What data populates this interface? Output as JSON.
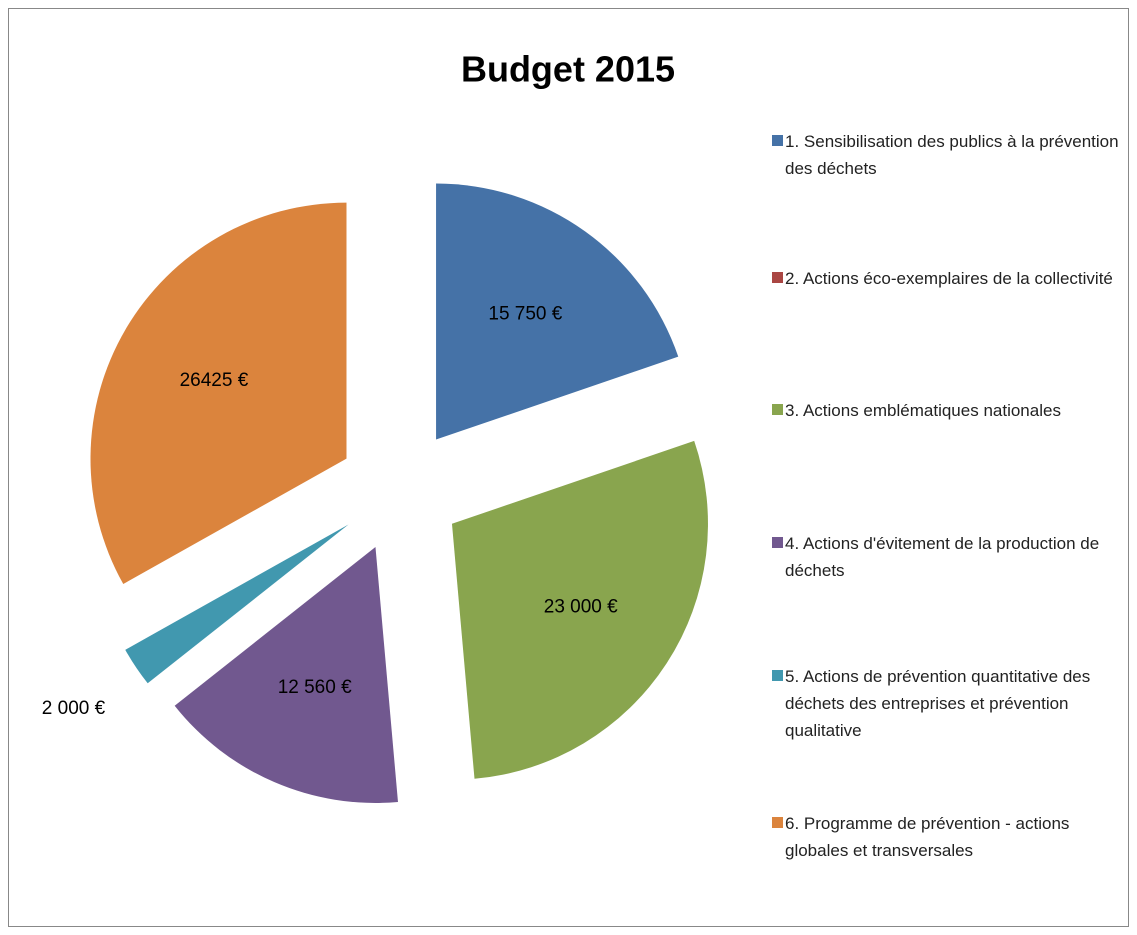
{
  "chart_data": {
    "type": "pie",
    "title": "Budget 2015",
    "categories": [
      "1. Sensibilisation des publics à la prévention des déchets",
      "2. Actions éco-exemplaires de la collectivité",
      "3. Actions emblématiques nationales",
      "4. Actions d'évitement de la production de déchets",
      "5. Actions de prévention quantitative des déchets des entreprises et prévention qualitative",
      "6. Programme de prévention - actions globales et transversales"
    ],
    "values": [
      15750,
      0,
      23000,
      12560,
      2000,
      26425
    ],
    "value_labels": [
      "15 750 €",
      null,
      "23 000 €",
      "12 560 €",
      "2 000 €",
      "26425 €"
    ],
    "colors": [
      "#4572A7",
      "#AA4643",
      "#89A54E",
      "#71588F",
      "#4198AF",
      "#DB843D"
    ],
    "exploded": true,
    "legend": "right"
  }
}
